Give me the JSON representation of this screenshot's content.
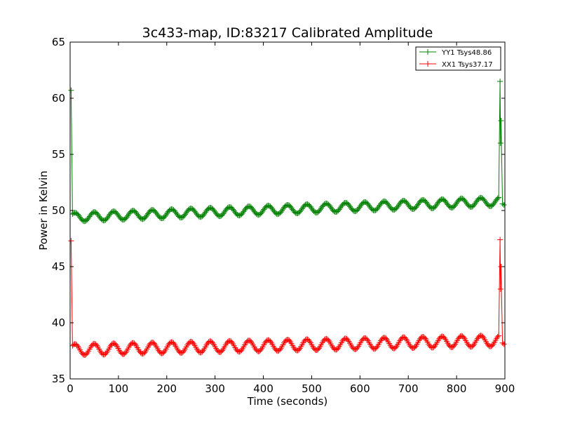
{
  "chart_data": {
    "type": "line",
    "title": "3c433-map, ID:83217 Calibrated Amplitude",
    "xlabel": "Time (seconds)",
    "ylabel": "Power in Kelvin",
    "xlim": [
      0,
      900
    ],
    "ylim": [
      35,
      65
    ],
    "xticks": [
      0,
      100,
      200,
      300,
      400,
      500,
      600,
      700,
      800,
      900
    ],
    "yticks": [
      35,
      40,
      45,
      50,
      55,
      60,
      65
    ],
    "grid": false,
    "legend_position": "top-right",
    "marker": "plus",
    "series": [
      {
        "name": "YY1 Tsys48.86",
        "color": "#008000",
        "base_start": 49.4,
        "base_end": 50.8,
        "oscillation_amplitude": 0.4,
        "oscillation_period": 40,
        "spikes": [
          {
            "x": 2,
            "y": 60.7
          },
          {
            "x": 890,
            "y": 61.5
          },
          {
            "x": 891,
            "y": 56.0
          },
          {
            "x": 892,
            "y": 58.0
          }
        ]
      },
      {
        "name": "XX1 Tsys37.17",
        "color": "#ff0000",
        "base_start": 37.6,
        "base_end": 38.4,
        "oscillation_amplitude": 0.5,
        "oscillation_period": 40,
        "spikes": [
          {
            "x": 2,
            "y": 47.3
          },
          {
            "x": 890,
            "y": 47.4
          },
          {
            "x": 891,
            "y": 43.0
          },
          {
            "x": 892,
            "y": 45.0
          }
        ]
      }
    ]
  }
}
